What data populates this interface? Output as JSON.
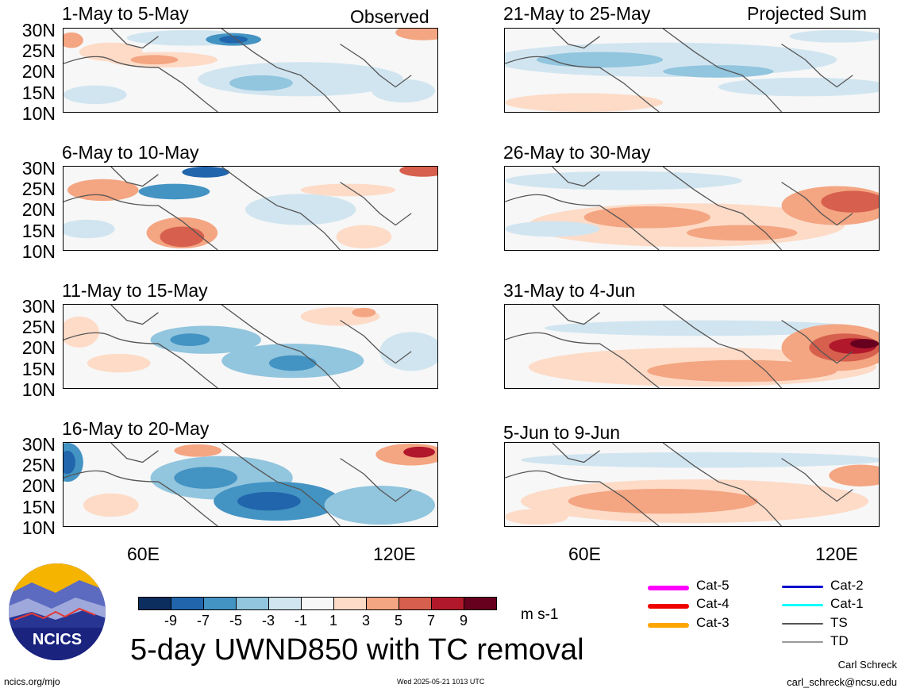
{
  "panels_left": [
    {
      "title": "1-May to 5-May",
      "tag": "Observed"
    },
    {
      "title": "6-May to 10-May",
      "tag": ""
    },
    {
      "title": "11-May to 15-May",
      "tag": ""
    },
    {
      "title": "16-May to 20-May",
      "tag": ""
    }
  ],
  "panels_right": [
    {
      "title": "21-May to 25-May",
      "tag": "Projected Sum"
    },
    {
      "title": "26-May to 30-May",
      "tag": ""
    },
    {
      "title": "31-May to 4-Jun",
      "tag": ""
    },
    {
      "title": "5-Jun to 9-Jun",
      "tag": ""
    }
  ],
  "y_ticks": [
    "30N",
    "25N",
    "20N",
    "15N",
    "10N"
  ],
  "x_ticks": [
    "60E",
    "120E"
  ],
  "colorbar": {
    "colors": [
      "#0b2e5e",
      "#2166ac",
      "#4393c3",
      "#92c5de",
      "#d1e5f0",
      "#f7f7f7",
      "#fddbc7",
      "#f4a582",
      "#d6604d",
      "#b2182b",
      "#67001f"
    ],
    "ticks": [
      "-9",
      "-7",
      "-5",
      "-3",
      "-1",
      "1",
      "3",
      "5",
      "7",
      "9"
    ],
    "units": "m s-1"
  },
  "main_title": "5-day UWND850 with TC removal",
  "tc_legend": [
    {
      "label": "Cat-5",
      "color": "#ff00ff"
    },
    {
      "label": "Cat-4",
      "color": "#ee0000"
    },
    {
      "label": "Cat-3",
      "color": "#ffa500"
    },
    {
      "label": "Cat-2",
      "color": "#0000cc"
    },
    {
      "label": "Cat-1",
      "color": "#00ffff"
    },
    {
      "label": "TS",
      "color": "#555555"
    },
    {
      "label": "TD",
      "color": "#999999"
    }
  ],
  "logo_text": "NCICS",
  "footer": {
    "left": "ncics.org/mjo",
    "center": "Wed 2025-05-21 1013 UTC",
    "author": "Carl Schreck",
    "email": "carl_schreck@ncsu.edu"
  }
}
